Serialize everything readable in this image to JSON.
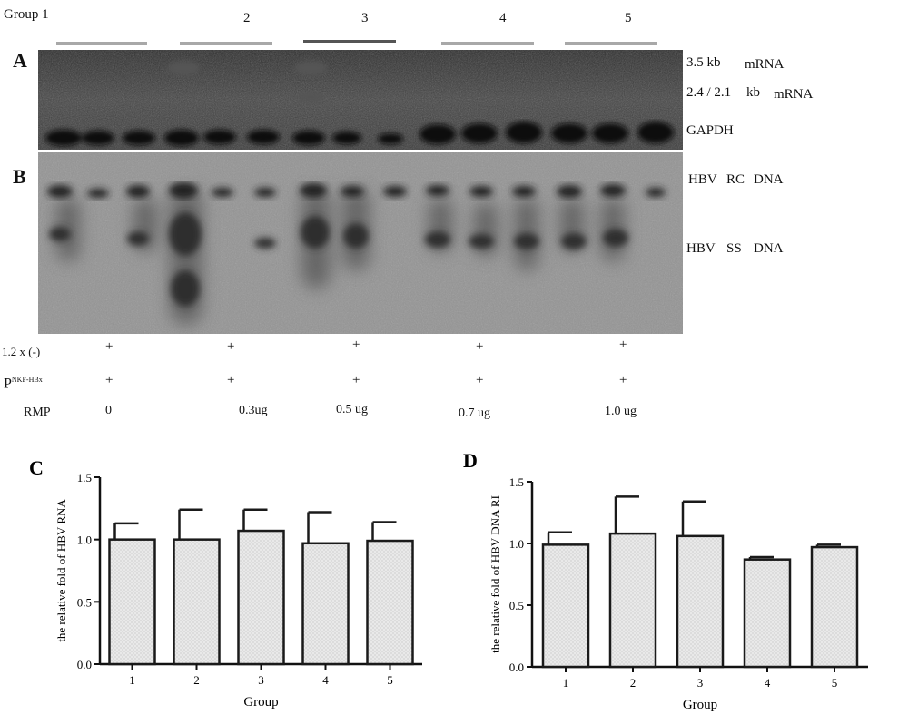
{
  "group_header": {
    "labels": [
      "Group 1",
      "2",
      "3",
      "4",
      "5"
    ]
  },
  "blot_a": {
    "letter": "A",
    "label_35": "3.5 kb",
    "label_35_type": "mRNA",
    "label_24": "2.4 / 2.1",
    "label_24_unit": "kb",
    "label_24_type": "mRNA",
    "label_gapdh": "GAPDH"
  },
  "blot_b": {
    "letter": "B",
    "label_rc": [
      "HBV",
      "RC",
      "DNA"
    ],
    "label_ss": [
      "HBV",
      "SS",
      "DNA"
    ]
  },
  "treatments": {
    "row1_label": "1.2 x (-)",
    "row2_label_main": "P",
    "row2_label_sup": "NKF-HBx",
    "row3_label": "RMP",
    "plus": "+",
    "rmp_doses": [
      "0",
      "0.3ug",
      "0.5 ug",
      "0.7 ug",
      "1.0 ug"
    ]
  },
  "colors": {
    "bar_fill": "#e9e9e9",
    "bar_stroke": "#1a1a1a",
    "blot_a_bg": "#3a3a3a",
    "blot_b_bg": "#8f8f8f"
  },
  "chart_data": [
    {
      "panel": "C",
      "type": "bar",
      "categories": [
        "1",
        "2",
        "3",
        "4",
        "5"
      ],
      "values": [
        1.0,
        1.0,
        1.07,
        0.97,
        0.99
      ],
      "errors": [
        0.13,
        0.24,
        0.17,
        0.25,
        0.15
      ],
      "xlabel": "Group",
      "ylabel": "the relative fold of HBV RNA",
      "ylim": [
        0,
        1.5
      ],
      "yticks": [
        "0.0",
        "0.5",
        "1.0",
        "1.5"
      ]
    },
    {
      "panel": "D",
      "type": "bar",
      "categories": [
        "1",
        "2",
        "3",
        "4",
        "5"
      ],
      "values": [
        0.99,
        1.08,
        1.06,
        0.87,
        0.97
      ],
      "errors": [
        0.1,
        0.3,
        0.28,
        0.02,
        0.02
      ],
      "xlabel": "Group",
      "ylabel": "the relative fold of HBV DNA RI",
      "ylim": [
        0,
        1.5
      ],
      "yticks": [
        "0.0",
        "0.5",
        "1.0",
        "1.5"
      ]
    }
  ]
}
